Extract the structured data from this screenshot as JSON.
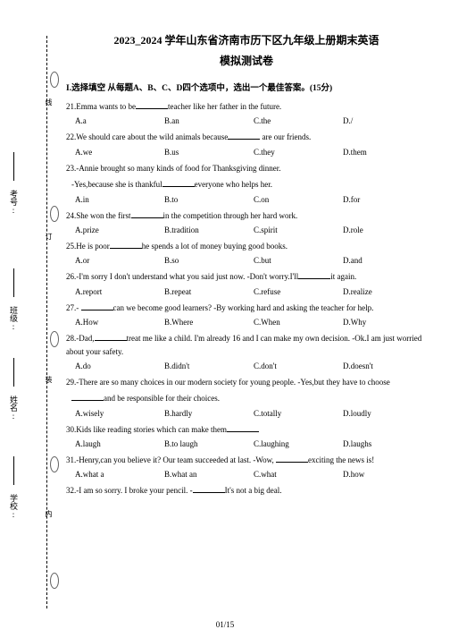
{
  "title1": "2023_2024 学年山东省济南市历下区九年级上册期末英语",
  "title2": "模拟测试卷",
  "section": "I.选择填空 从每题A、B、C、D四个选项中，选出一个最佳答案。(15分)",
  "pageNum": "01/15",
  "sidebar": {
    "labels": [
      "考号:",
      "班级:",
      "姓名:",
      "学校:"
    ],
    "cutChars": [
      "线",
      "订",
      "装",
      "内"
    ]
  },
  "questions": [
    {
      "n": "21",
      "textA": "Emma wants to be",
      "textB": "teacher like her father in the future.",
      "opts": [
        "A.a",
        "B.an",
        "C.the",
        "D./"
      ]
    },
    {
      "n": "22",
      "textA": "We should care about the wild animals because",
      "textB": " are our friends.",
      "opts": [
        "A.we",
        "B.us",
        "C.they",
        "D.them"
      ]
    },
    {
      "n": "23",
      "textA": "-Annie brought so many kinds of food for Thanksgiving dinner.",
      "line2a": "-Yes,because she is thankful",
      "line2b": "everyone who helps her.",
      "opts": [
        "A.in",
        "B.to",
        "C.on",
        "D.for"
      ]
    },
    {
      "n": "24",
      "textA": "She won the first",
      "textB": "in the competition through her hard work.",
      "opts": [
        "A.prize",
        "B.tradition",
        "C.spirit",
        "D.role"
      ]
    },
    {
      "n": "25",
      "textA": "He is poor",
      "textB": "he spends a lot of money buying good books.",
      "opts": [
        "A.or",
        "B.so",
        "C.but",
        "D.and"
      ]
    },
    {
      "n": "26",
      "textA": "-I'm sorry I don't understand what you said just now. -Don't worry.I'll",
      "textB": "it again.",
      "opts": [
        "A.report",
        "B.repeat",
        "C.refuse",
        "D.realize"
      ]
    },
    {
      "n": "27",
      "textA": "- ",
      "textB": "can we become good learners? -By working hard and asking the teacher for help.",
      "opts": [
        "A.How",
        "B.Where",
        "C.When",
        "D.Why"
      ]
    },
    {
      "n": "28",
      "textA": "-Dad,",
      "textB": "treat me like a child. I'm already 16 and I can make my own decision. -Ok.I am just worried about your safety.",
      "opts": [
        "A.do",
        "B.didn't",
        "C.don't",
        "D.doesn't"
      ]
    },
    {
      "n": "29",
      "textA": "-There are so many choices in our modern society for young people. -Yes,but they have to choose",
      "line2a": "",
      "line2b": "and be responsible for their choices.",
      "opts": [
        "A.wisely",
        "B.hardly",
        "C.totally",
        "D.loudly"
      ]
    },
    {
      "n": "30",
      "textA": "Kids like reading stories which can make them",
      "textB": "",
      "opts": [
        "A.laugh",
        "B.to laugh",
        "C.laughing",
        "D.laughs"
      ]
    },
    {
      "n": "31",
      "textA": "-Henry,can you believe it? Our team succeeded at last. -Wow, ",
      "textB": "exciting the news is!",
      "opts": [
        "A.what a",
        "B.what an",
        "C.what",
        "D.how"
      ]
    },
    {
      "n": "32",
      "textA": "-I am so sorry. I broke your pencil. -",
      "textB": "It's not a big deal."
    }
  ]
}
